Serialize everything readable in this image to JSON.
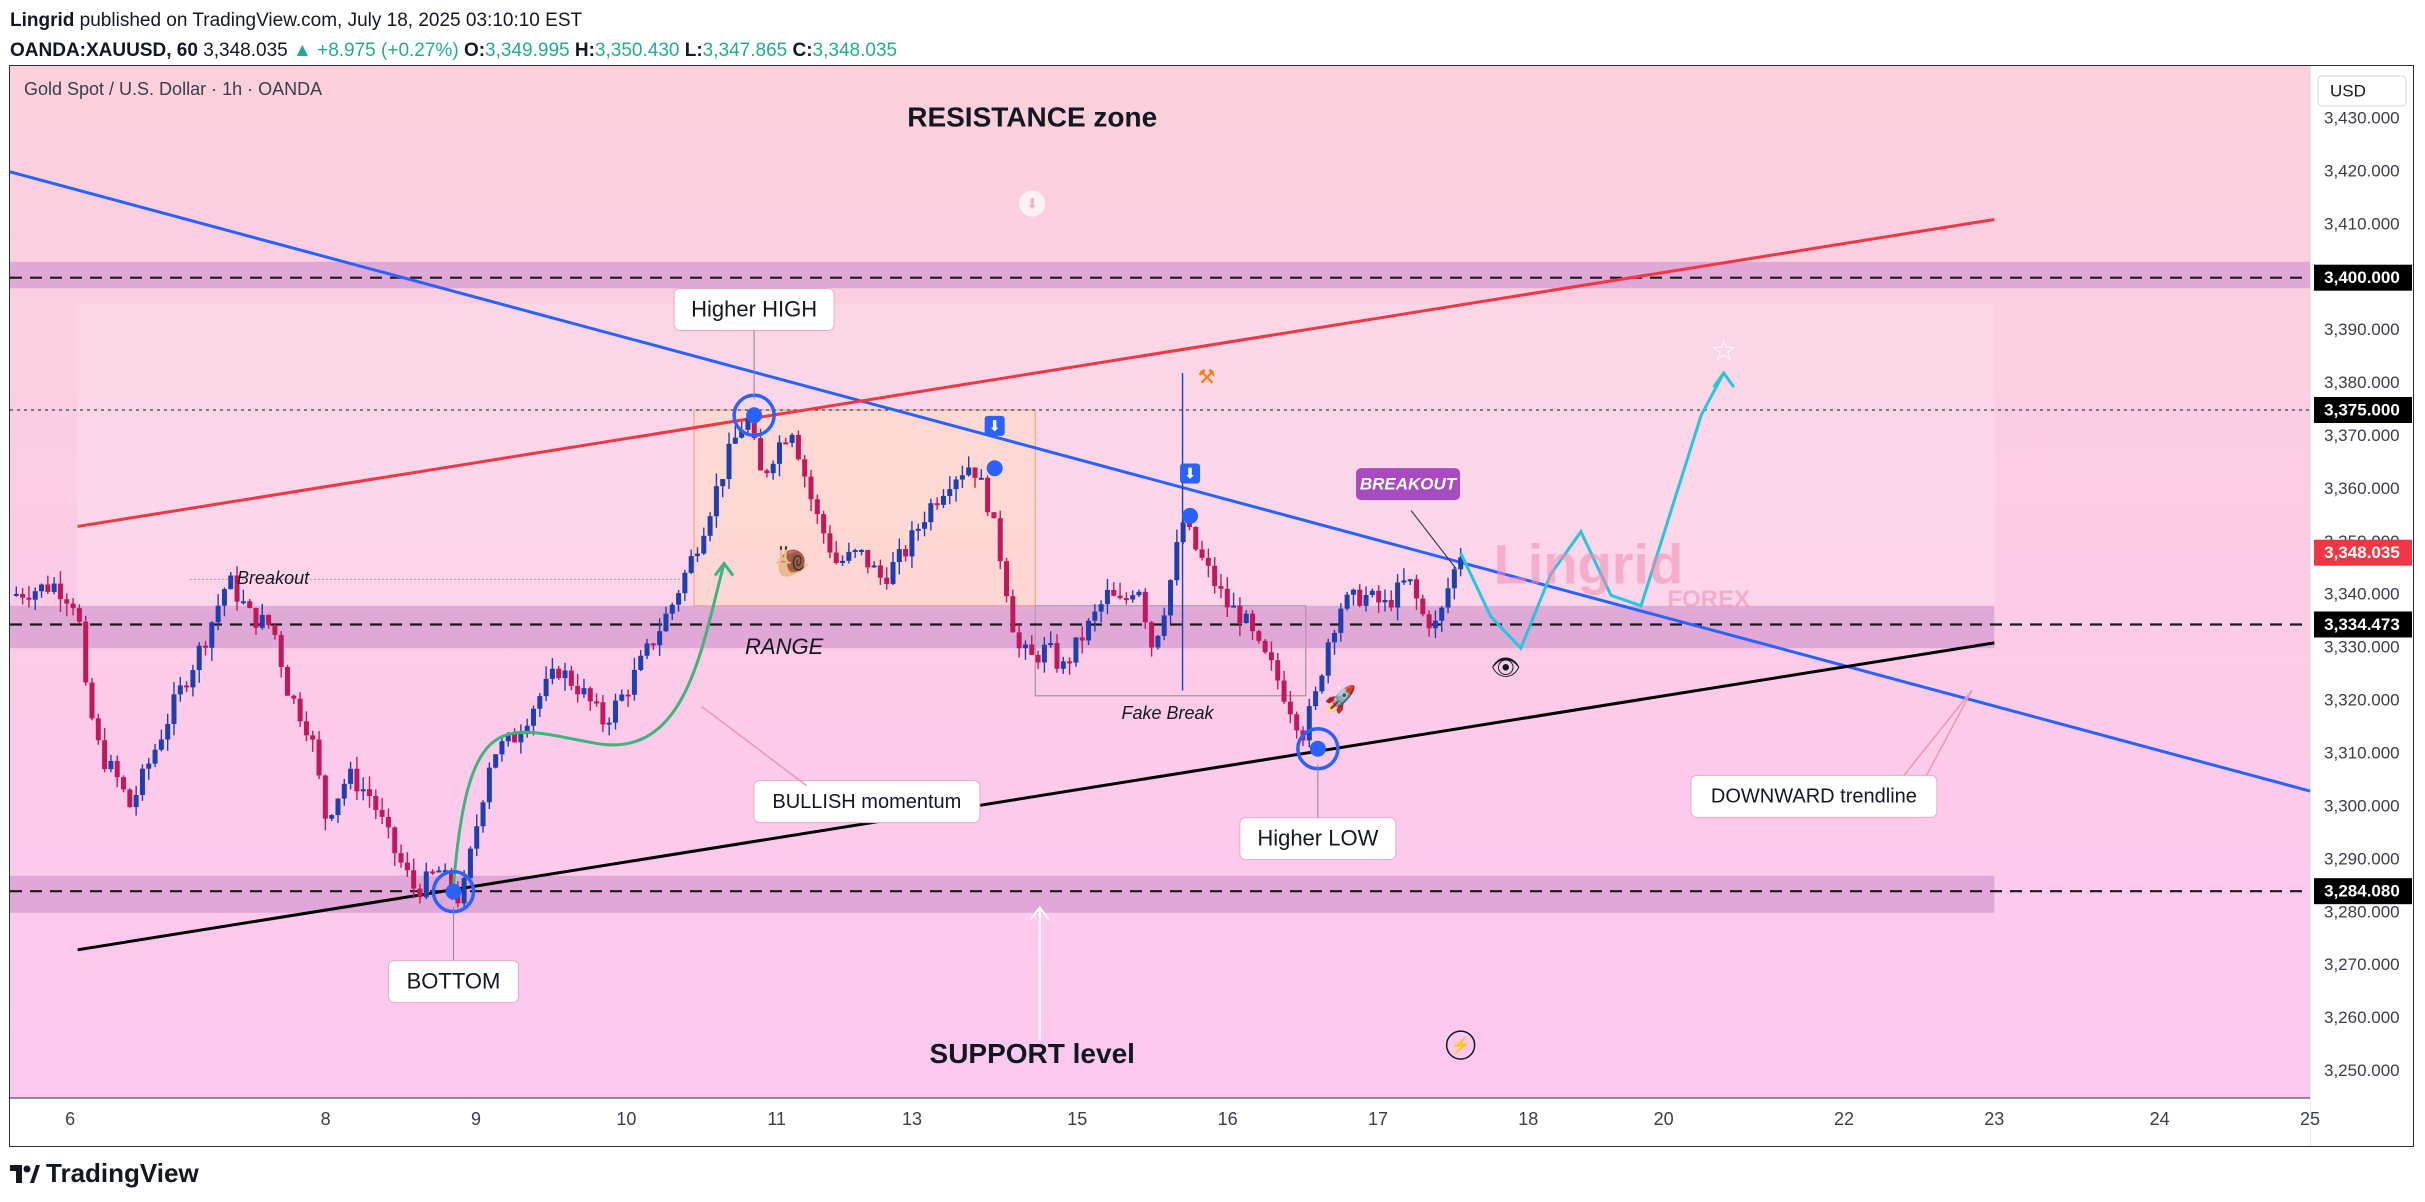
{
  "header": {
    "publisher": "Lingrid",
    "published_text": "published on TradingView.com, July 18, 2025 03:10:10 EST",
    "symbol": "OANDA:XAUUSD, 60",
    "last": "3,348.035",
    "change": "▲ +8.975 (+0.27%)",
    "o_label": "O:",
    "o": "3,349.995",
    "h_label": "H:",
    "h": "3,350.430",
    "l_label": "L:",
    "l": "3,347.865",
    "c_label": "C:",
    "c": "3,348.035"
  },
  "chart_title": "Gold Spot / U.S. Dollar · 1h · OANDA",
  "currency": "USD",
  "brand": "TradingView",
  "colors": {
    "bg_top": "#fbd0dc",
    "bg_bottom": "#fcc8f0",
    "band": "#cf8fcc",
    "up": "#1e40af",
    "down": "#c2185b",
    "trend_blue": "#2962ff",
    "trend_red": "#f23645",
    "trend_black": "#000000",
    "cyan": "#26c6da",
    "green": "#3bb57a",
    "price_tag": "#f23645"
  },
  "chart_data": {
    "type": "candlestick",
    "title": "Gold Spot / U.S. Dollar · 1h · OANDA",
    "y_axis": {
      "min": 3245,
      "max": 3440,
      "position": "right",
      "ticks": [
        "3,250.000",
        "3,260.000",
        "3,270.000",
        "3,280.000",
        "3,290.000",
        "3,300.000",
        "3,310.000",
        "3,320.000",
        "3,330.000",
        "3,340.000",
        "3,350.000",
        "3,360.000",
        "3,370.000",
        "3,380.000",
        "3,390.000",
        "3,400.000",
        "3,410.000",
        "3,420.000",
        "3,430.000"
      ]
    },
    "x_axis": {
      "ticks": [
        {
          "label": "6",
          "x": 0.4
        },
        {
          "label": "8",
          "x": 2.1
        },
        {
          "label": "9",
          "x": 3.1
        },
        {
          "label": "10",
          "x": 4.1
        },
        {
          "label": "11",
          "x": 5.1
        },
        {
          "label": "13",
          "x": 6.0
        },
        {
          "label": "15",
          "x": 7.1
        },
        {
          "label": "16",
          "x": 8.1
        },
        {
          "label": "17",
          "x": 9.1
        },
        {
          "label": "18",
          "x": 10.1
        },
        {
          "label": "20",
          "x": 11.0
        },
        {
          "label": "22",
          "x": 12.2
        },
        {
          "label": "23",
          "x": 13.2
        },
        {
          "label": "24",
          "x": 14.3
        },
        {
          "label": "25",
          "x": 15.3
        }
      ],
      "range": [
        0,
        15.3
      ]
    },
    "price_path": [
      [
        0,
        3340
      ],
      [
        0.3,
        3342
      ],
      [
        0.45,
        3338
      ],
      [
        0.5,
        3322
      ],
      [
        0.6,
        3310
      ],
      [
        0.7,
        3306
      ],
      [
        0.8,
        3300
      ],
      [
        0.95,
        3310
      ],
      [
        1.1,
        3320
      ],
      [
        1.3,
        3332
      ],
      [
        1.45,
        3343
      ],
      [
        1.6,
        3336
      ],
      [
        1.75,
        3334
      ],
      [
        1.85,
        3322
      ],
      [
        2.0,
        3314
      ],
      [
        2.1,
        3298
      ],
      [
        2.25,
        3306
      ],
      [
        2.4,
        3302
      ],
      [
        2.55,
        3292
      ],
      [
        2.7,
        3284
      ],
      [
        2.85,
        3288
      ],
      [
        3.0,
        3282
      ],
      [
        3.1,
        3296
      ],
      [
        3.2,
        3310
      ],
      [
        3.35,
        3313
      ],
      [
        3.5,
        3320
      ],
      [
        3.65,
        3326
      ],
      [
        3.8,
        3322
      ],
      [
        3.95,
        3316
      ],
      [
        4.1,
        3322
      ],
      [
        4.25,
        3330
      ],
      [
        4.4,
        3338
      ],
      [
        4.55,
        3348
      ],
      [
        4.7,
        3360
      ],
      [
        4.8,
        3368
      ],
      [
        4.9,
        3374
      ],
      [
        5.0,
        3362
      ],
      [
        5.1,
        3368
      ],
      [
        5.2,
        3372
      ],
      [
        5.35,
        3356
      ],
      [
        5.5,
        3346
      ],
      [
        5.65,
        3348
      ],
      [
        5.8,
        3343
      ],
      [
        5.95,
        3348
      ],
      [
        6.1,
        3356
      ],
      [
        6.25,
        3362
      ],
      [
        6.4,
        3365
      ],
      [
        6.5,
        3358
      ],
      [
        6.6,
        3346
      ],
      [
        6.7,
        3330
      ],
      [
        6.8,
        3328
      ],
      [
        6.9,
        3330
      ],
      [
        7.0,
        3326
      ],
      [
        7.15,
        3333
      ],
      [
        7.3,
        3340
      ],
      [
        7.4,
        3338
      ],
      [
        7.5,
        3343
      ],
      [
        7.6,
        3330
      ],
      [
        7.7,
        3340
      ],
      [
        7.8,
        3354
      ],
      [
        7.9,
        3348
      ],
      [
        8.0,
        3343
      ],
      [
        8.1,
        3338
      ],
      [
        8.2,
        3336
      ],
      [
        8.3,
        3330
      ],
      [
        8.4,
        3326
      ],
      [
        8.5,
        3320
      ],
      [
        8.6,
        3314
      ],
      [
        8.7,
        3322
      ],
      [
        8.75,
        3330
      ],
      [
        8.85,
        3338
      ],
      [
        9.0,
        3340
      ],
      [
        9.15,
        3338
      ],
      [
        9.3,
        3343
      ],
      [
        9.4,
        3336
      ],
      [
        9.5,
        3334
      ],
      [
        9.55,
        3340
      ],
      [
        9.65,
        3348
      ]
    ],
    "levels": [
      {
        "label": "3,400.000",
        "value": 3400,
        "band": [
          3398,
          3403
        ]
      },
      {
        "label": "3,375.000",
        "value": 3375
      },
      {
        "label": "3,348.035",
        "value": 3348.035,
        "current": true
      },
      {
        "label": "3,334.473",
        "value": 3334.473,
        "band": [
          3330,
          3338
        ]
      },
      {
        "label": "3,284.080",
        "value": 3284.08,
        "band": [
          3280,
          3287
        ]
      }
    ],
    "annotations": [
      {
        "key": "resistance",
        "text": "RESISTANCE zone"
      },
      {
        "key": "support",
        "text": "SUPPORT level"
      },
      {
        "key": "higher_high",
        "text": "Higher HIGH"
      },
      {
        "key": "higher_low",
        "text": "Higher LOW"
      },
      {
        "key": "bottom",
        "text": "BOTTOM"
      },
      {
        "key": "bullish",
        "text": "BULLISH momentum"
      },
      {
        "key": "downward",
        "text": "DOWNWARD trendline"
      },
      {
        "key": "breakout_tag",
        "text": "BREAKOUT"
      },
      {
        "key": "breakout_small",
        "text": "Breakout"
      },
      {
        "key": "range",
        "text": "RANGE"
      },
      {
        "key": "fake_break",
        "text": "Fake Break"
      }
    ],
    "watermark": {
      "line1": "Lingrid",
      "line2": "FOREX"
    }
  }
}
